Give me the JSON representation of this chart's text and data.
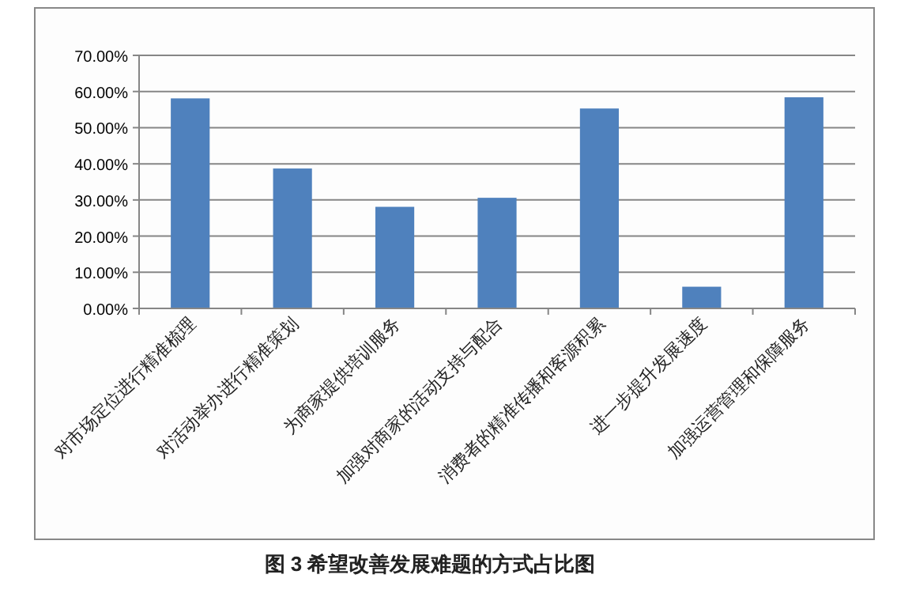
{
  "chart_data": {
    "type": "bar",
    "title": "图 3 希望改善发展难题的方式占比图",
    "categories": [
      "对市场定位进行精准梳理",
      "对活动举办进行精准策划",
      "为商家提供培训服务",
      "加强对商家的活动支持与配合",
      "消费者的精准传播和客源积累",
      "进一步提升发展速度",
      "加强运营管理和保障服务"
    ],
    "values": [
      58.1,
      38.7,
      28.1,
      30.6,
      55.3,
      6.0,
      58.4
    ],
    "color": "#4f81bd",
    "ylim": [
      0,
      70
    ],
    "yticks": [
      {
        "value": 0,
        "label": "0.00%"
      },
      {
        "value": 10,
        "label": "10.00%"
      },
      {
        "value": 20,
        "label": "20.00%"
      },
      {
        "value": 30,
        "label": "30.00%"
      },
      {
        "value": 40,
        "label": "40.00%"
      },
      {
        "value": 50,
        "label": "50.00%"
      },
      {
        "value": 60,
        "label": "60.00%"
      },
      {
        "value": 70,
        "label": "70.00%"
      }
    ],
    "grid": "y"
  }
}
